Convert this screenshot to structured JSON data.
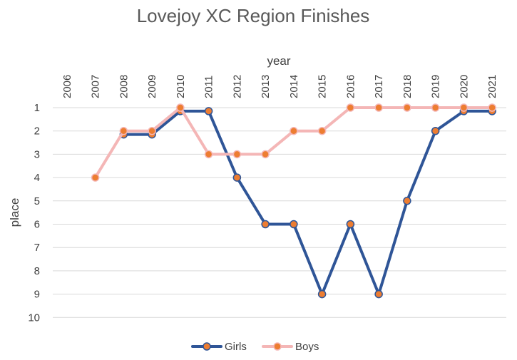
{
  "chart_data": {
    "type": "line",
    "title": "Lovejoy XC Region Finishes",
    "xlabel": "year",
    "ylabel": "place",
    "x": [
      "2006",
      "2007",
      "2008",
      "2009",
      "2010",
      "2011",
      "2012",
      "2013",
      "2014",
      "2015",
      "2016",
      "2017",
      "2018",
      "2019",
      "2020",
      "2021"
    ],
    "y_ticks": [
      "1",
      "2",
      "3",
      "4",
      "5",
      "6",
      "7",
      "8",
      "9",
      "10"
    ],
    "ylim": [
      1,
      10
    ],
    "y_reversed": true,
    "x_axis_position": "top",
    "grid": true,
    "legend_position": "bottom",
    "series": [
      {
        "name": "Girls",
        "line_color": "#2f5597",
        "marker_color": "#ed7d31",
        "values": [
          null,
          null,
          2.15,
          2.15,
          1.15,
          1.15,
          4,
          6,
          6,
          9,
          6,
          9,
          5,
          2,
          1.15,
          1.15
        ]
      },
      {
        "name": "Boys",
        "line_color": "#f4b6b6",
        "marker_color": "#ed7d31",
        "values": [
          null,
          4,
          2,
          2,
          1,
          3,
          3,
          3,
          2,
          2,
          1,
          1,
          1,
          1,
          1,
          1
        ]
      }
    ]
  }
}
